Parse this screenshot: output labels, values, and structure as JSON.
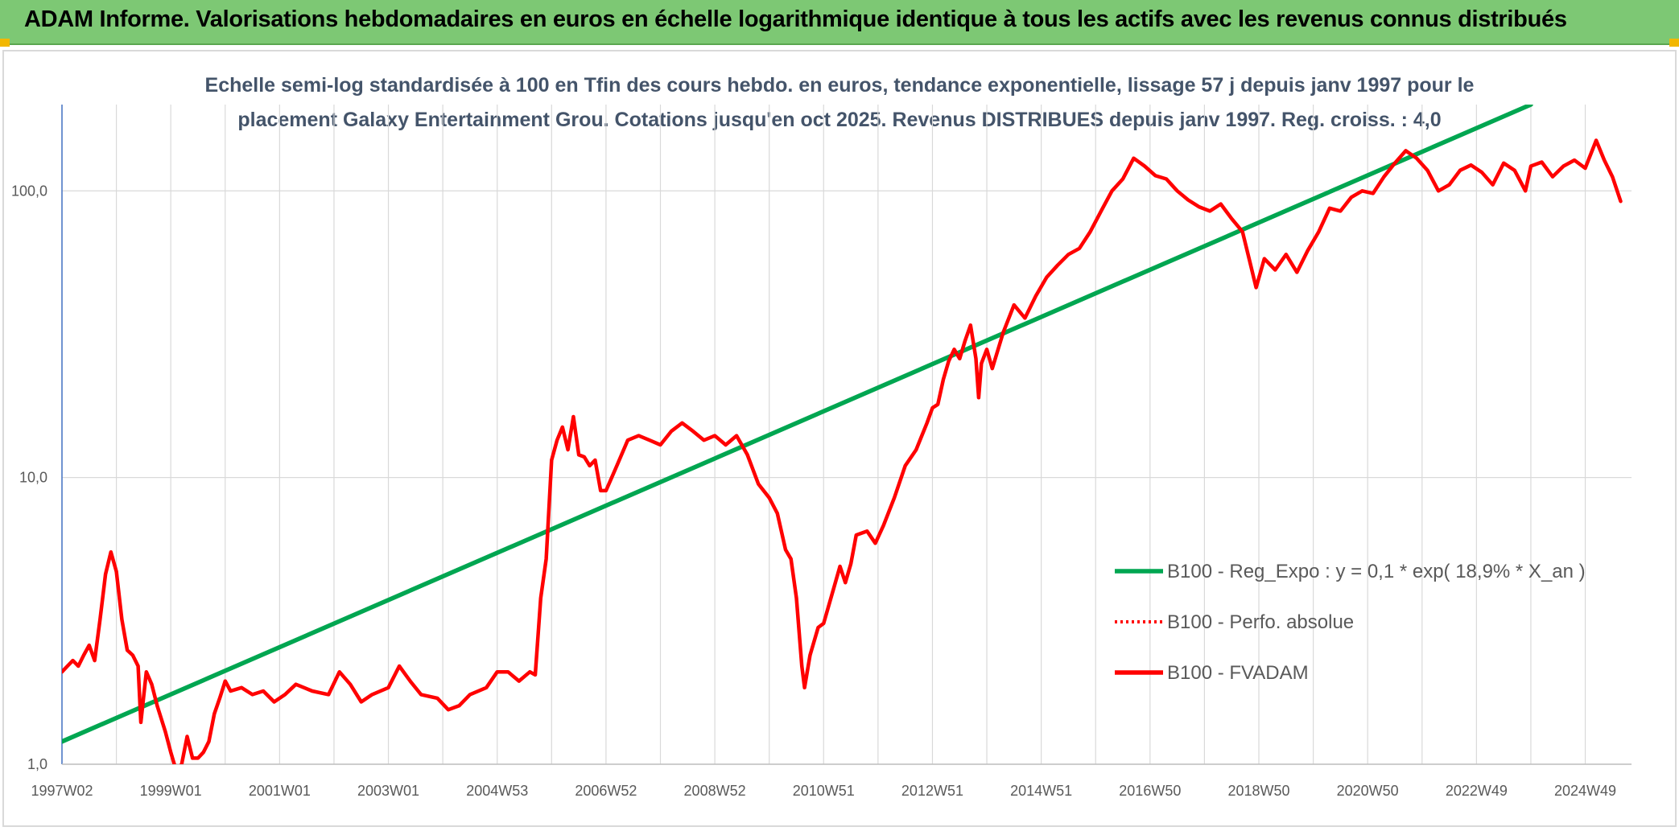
{
  "banner": {
    "title": "ADAM Informe. Valorisations hebdomadaires en euros en échelle logarithmique identique à tous les actifs avec les revenus connus distribués"
  },
  "colors": {
    "banner_bg": "#7dc874",
    "corner": "#f2b700",
    "trend": "#00a651",
    "series": "#ff0000",
    "grid": "#d9d9d9",
    "axis_left": "#4472c4"
  },
  "chart_data": {
    "type": "line",
    "subtitle_line1": "Echelle semi-log standardisée à 100 en Tfin des cours hebdo. en euros, tendance exponentielle, lissage 57 j depuis janv 1997 pour le",
    "subtitle_line2": "placement Galaxy Entertainment Grou. Cotations jusqu'en oct 2025. Revenus DISTRIBUES depuis janv 1997. Reg. croiss. : 4,0",
    "y_scale": "log",
    "ylim": [
      1,
      200
    ],
    "xlim": [
      1997.0,
      2025.85
    ],
    "y_ticks": [
      {
        "value": 1,
        "label": "1,0"
      },
      {
        "value": 10,
        "label": "10,0"
      },
      {
        "value": 100,
        "label": "100,0"
      }
    ],
    "x_ticks": [
      {
        "value": 1997.0,
        "label": "1997W02"
      },
      {
        "value": 1999.0,
        "label": "1999W01"
      },
      {
        "value": 2001.0,
        "label": "2001W01"
      },
      {
        "value": 2003.0,
        "label": "2003W01"
      },
      {
        "value": 2005.0,
        "label": "2004W53"
      },
      {
        "value": 2007.0,
        "label": "2006W52"
      },
      {
        "value": 2009.0,
        "label": "2008W52"
      },
      {
        "value": 2011.0,
        "label": "2010W51"
      },
      {
        "value": 2013.0,
        "label": "2012W51"
      },
      {
        "value": 2015.0,
        "label": "2014W51"
      },
      {
        "value": 2017.0,
        "label": "2016W50"
      },
      {
        "value": 2019.0,
        "label": "2018W50"
      },
      {
        "value": 2021.0,
        "label": "2020W50"
      },
      {
        "value": 2023.0,
        "label": "2022W49"
      },
      {
        "value": 2025.0,
        "label": "2024W49"
      }
    ],
    "grid": "vertical and horizontal",
    "legend_position": "bottom-right",
    "series": [
      {
        "name": "B100 - Reg_Expo : y = 0,1 * exp( 18,9% *  X_an )",
        "color": "#00a651",
        "style": "solid",
        "points": [
          [
            1997.0,
            1.2
          ],
          [
            2024.0,
            200
          ]
        ]
      },
      {
        "name": "B100 - Perfo. absolue",
        "color": "#ff0000",
        "style": "dotted",
        "points": []
      },
      {
        "name": "B100 - FVADAM",
        "color": "#ff0000",
        "style": "solid",
        "points": [
          [
            1997.0,
            2.1
          ],
          [
            1997.1,
            2.2
          ],
          [
            1997.2,
            2.3
          ],
          [
            1997.3,
            2.2
          ],
          [
            1997.4,
            2.4
          ],
          [
            1997.5,
            2.6
          ],
          [
            1997.6,
            2.3
          ],
          [
            1997.7,
            3.2
          ],
          [
            1997.8,
            4.6
          ],
          [
            1997.9,
            5.5
          ],
          [
            1998.0,
            4.7
          ],
          [
            1998.1,
            3.2
          ],
          [
            1998.2,
            2.5
          ],
          [
            1998.3,
            2.4
          ],
          [
            1998.4,
            2.2
          ],
          [
            1998.45,
            1.4
          ],
          [
            1998.55,
            2.1
          ],
          [
            1998.65,
            1.9
          ],
          [
            1998.75,
            1.6
          ],
          [
            1998.9,
            1.3
          ],
          [
            1999.0,
            1.1
          ],
          [
            1999.1,
            0.95
          ],
          [
            1999.2,
            1.0
          ],
          [
            1999.3,
            1.25
          ],
          [
            1999.4,
            1.05
          ],
          [
            1999.5,
            1.05
          ],
          [
            1999.6,
            1.1
          ],
          [
            1999.7,
            1.2
          ],
          [
            1999.8,
            1.5
          ],
          [
            1999.9,
            1.7
          ],
          [
            2000.0,
            1.95
          ],
          [
            2000.1,
            1.8
          ],
          [
            2000.3,
            1.85
          ],
          [
            2000.5,
            1.75
          ],
          [
            2000.7,
            1.8
          ],
          [
            2000.9,
            1.65
          ],
          [
            2001.1,
            1.75
          ],
          [
            2001.3,
            1.9
          ],
          [
            2001.6,
            1.8
          ],
          [
            2001.9,
            1.75
          ],
          [
            2002.1,
            2.1
          ],
          [
            2002.3,
            1.9
          ],
          [
            2002.5,
            1.65
          ],
          [
            2002.7,
            1.75
          ],
          [
            2003.0,
            1.85
          ],
          [
            2003.2,
            2.2
          ],
          [
            2003.4,
            1.95
          ],
          [
            2003.6,
            1.75
          ],
          [
            2003.9,
            1.7
          ],
          [
            2004.1,
            1.55
          ],
          [
            2004.3,
            1.6
          ],
          [
            2004.5,
            1.75
          ],
          [
            2004.8,
            1.85
          ],
          [
            2005.0,
            2.1
          ],
          [
            2005.2,
            2.1
          ],
          [
            2005.4,
            1.95
          ],
          [
            2005.6,
            2.1
          ],
          [
            2005.7,
            2.05
          ],
          [
            2005.8,
            3.8
          ],
          [
            2005.9,
            5.2
          ],
          [
            2006.0,
            11.5
          ],
          [
            2006.1,
            13.5
          ],
          [
            2006.2,
            15.0
          ],
          [
            2006.3,
            12.5
          ],
          [
            2006.4,
            16.3
          ],
          [
            2006.5,
            12.0
          ],
          [
            2006.6,
            11.8
          ],
          [
            2006.7,
            11.0
          ],
          [
            2006.8,
            11.5
          ],
          [
            2006.9,
            9.0
          ],
          [
            2007.0,
            9.0
          ],
          [
            2007.2,
            11.0
          ],
          [
            2007.4,
            13.5
          ],
          [
            2007.6,
            14.0
          ],
          [
            2007.8,
            13.5
          ],
          [
            2008.0,
            13.0
          ],
          [
            2008.2,
            14.5
          ],
          [
            2008.4,
            15.5
          ],
          [
            2008.6,
            14.5
          ],
          [
            2008.8,
            13.5
          ],
          [
            2009.0,
            14.0
          ],
          [
            2009.2,
            13.0
          ],
          [
            2009.4,
            14.0
          ],
          [
            2009.6,
            12.0
          ],
          [
            2009.8,
            9.5
          ],
          [
            2010.0,
            8.5
          ],
          [
            2010.15,
            7.5
          ],
          [
            2010.3,
            5.6
          ],
          [
            2010.4,
            5.2
          ],
          [
            2010.5,
            3.8
          ],
          [
            2010.6,
            2.2
          ],
          [
            2010.65,
            1.85
          ],
          [
            2010.75,
            2.4
          ],
          [
            2010.9,
            3.0
          ],
          [
            2011.0,
            3.1
          ],
          [
            2011.2,
            4.2
          ],
          [
            2011.3,
            4.9
          ],
          [
            2011.4,
            4.3
          ],
          [
            2011.5,
            5.0
          ],
          [
            2011.6,
            6.3
          ],
          [
            2011.8,
            6.5
          ],
          [
            2011.95,
            5.9
          ],
          [
            2012.1,
            6.8
          ],
          [
            2012.3,
            8.5
          ],
          [
            2012.5,
            11.0
          ],
          [
            2012.7,
            12.5
          ],
          [
            2012.9,
            15.5
          ],
          [
            2013.0,
            17.5
          ],
          [
            2013.1,
            18.0
          ],
          [
            2013.2,
            22.0
          ],
          [
            2013.3,
            25.5
          ],
          [
            2013.4,
            28.0
          ],
          [
            2013.5,
            26.0
          ],
          [
            2013.6,
            30.0
          ],
          [
            2013.7,
            34.0
          ],
          [
            2013.8,
            26.0
          ],
          [
            2013.85,
            19.0
          ],
          [
            2013.9,
            25.0
          ],
          [
            2014.0,
            28.0
          ],
          [
            2014.1,
            24.0
          ],
          [
            2014.3,
            32.0
          ],
          [
            2014.5,
            40.0
          ],
          [
            2014.7,
            36.0
          ],
          [
            2014.9,
            43.0
          ],
          [
            2015.1,
            50.0
          ],
          [
            2015.3,
            55.0
          ],
          [
            2015.5,
            60.0
          ],
          [
            2015.7,
            63.0
          ],
          [
            2015.9,
            72.0
          ],
          [
            2016.1,
            85.0
          ],
          [
            2016.3,
            100.0
          ],
          [
            2016.5,
            110.0
          ],
          [
            2016.7,
            130.0
          ],
          [
            2016.9,
            122.0
          ],
          [
            2017.1,
            113.0
          ],
          [
            2017.3,
            110.0
          ],
          [
            2017.5,
            100.0
          ],
          [
            2017.7,
            93.0
          ],
          [
            2017.9,
            88.0
          ],
          [
            2018.1,
            85.0
          ],
          [
            2018.3,
            90.0
          ],
          [
            2018.5,
            80.0
          ],
          [
            2018.7,
            72.0
          ],
          [
            2018.85,
            55.0
          ],
          [
            2018.95,
            46.0
          ],
          [
            2019.1,
            58.0
          ],
          [
            2019.3,
            53.0
          ],
          [
            2019.5,
            60.0
          ],
          [
            2019.7,
            52.0
          ],
          [
            2019.9,
            62.0
          ],
          [
            2020.1,
            72.0
          ],
          [
            2020.3,
            87.0
          ],
          [
            2020.5,
            85.0
          ],
          [
            2020.7,
            95.0
          ],
          [
            2020.9,
            100.0
          ],
          [
            2021.1,
            98.0
          ],
          [
            2021.3,
            112.0
          ],
          [
            2021.5,
            125.0
          ],
          [
            2021.7,
            138.0
          ],
          [
            2021.9,
            130.0
          ],
          [
            2022.1,
            118.0
          ],
          [
            2022.3,
            100.0
          ],
          [
            2022.5,
            105.0
          ],
          [
            2022.7,
            118.0
          ],
          [
            2022.9,
            123.0
          ],
          [
            2023.1,
            116.0
          ],
          [
            2023.3,
            105.0
          ],
          [
            2023.5,
            125.0
          ],
          [
            2023.7,
            118.0
          ],
          [
            2023.9,
            100.0
          ],
          [
            2024.0,
            122.0
          ],
          [
            2024.2,
            126.0
          ],
          [
            2024.4,
            112.0
          ],
          [
            2024.6,
            122.0
          ],
          [
            2024.8,
            128.0
          ],
          [
            2025.0,
            120.0
          ],
          [
            2025.2,
            150.0
          ],
          [
            2025.35,
            128.0
          ],
          [
            2025.5,
            112.0
          ],
          [
            2025.65,
            92.0
          ]
        ]
      }
    ]
  }
}
